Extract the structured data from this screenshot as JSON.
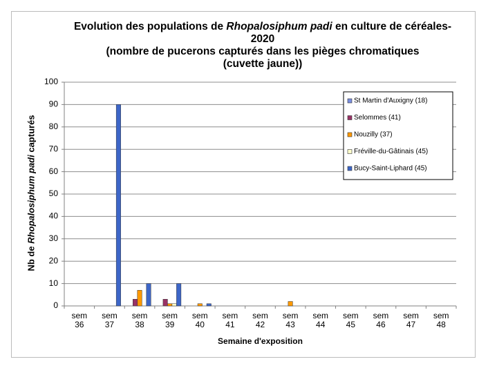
{
  "chart_data": {
    "type": "bar",
    "title": [
      "Evolution des populations de ",
      "Rhopalosiphum padi",
      " en culture de céréales- 2020"
    ],
    "subtitle": "(nombre de pucerons capturés dans les pièges chromatiques (cuvette jaune))",
    "y_label": [
      "Nb de ",
      "Rhopalosiphum  padi",
      " capturés"
    ],
    "x_label": "Semaine d'exposition",
    "categories": [
      "sem 36",
      "sem 37",
      "sem 38",
      "sem 39",
      "sem 40",
      "sem 41",
      "sem 42",
      "sem 43",
      "sem 44",
      "sem 45",
      "sem 46",
      "sem 47",
      "sem 48"
    ],
    "series": [
      {
        "name": "St Martin d'Auxigny (18)",
        "color": "#7b8fe0",
        "values": [
          0,
          0,
          0,
          0,
          0,
          0,
          0,
          0,
          0,
          0,
          0,
          0,
          0
        ]
      },
      {
        "name": "Selommes (41)",
        "color": "#993366",
        "values": [
          0,
          0,
          3,
          3,
          0,
          0,
          0,
          0,
          0,
          0,
          0,
          0,
          0
        ]
      },
      {
        "name": "Nouzilly (37)",
        "color": "#ff9900",
        "values": [
          0,
          0,
          7,
          1,
          1,
          0,
          0,
          2,
          0,
          0,
          0,
          0,
          0
        ]
      },
      {
        "name": "Fréville-du-Gâtinais (45)",
        "color": "#ffffcc",
        "values": [
          0,
          0,
          0,
          1,
          0,
          0,
          0,
          0,
          0,
          0,
          0,
          0,
          0
        ]
      },
      {
        "name": "Bucy-Saint-Liphard (45)",
        "color": "#3d66c8",
        "values": [
          0,
          90,
          10,
          10,
          1,
          0,
          0,
          0,
          0,
          0,
          0,
          0,
          0
        ]
      }
    ],
    "ylim": [
      0,
      100
    ],
    "yticks": [
      0,
      10,
      20,
      30,
      40,
      50,
      60,
      70,
      80,
      90,
      100
    ],
    "grid": true,
    "legend": "upper right"
  }
}
